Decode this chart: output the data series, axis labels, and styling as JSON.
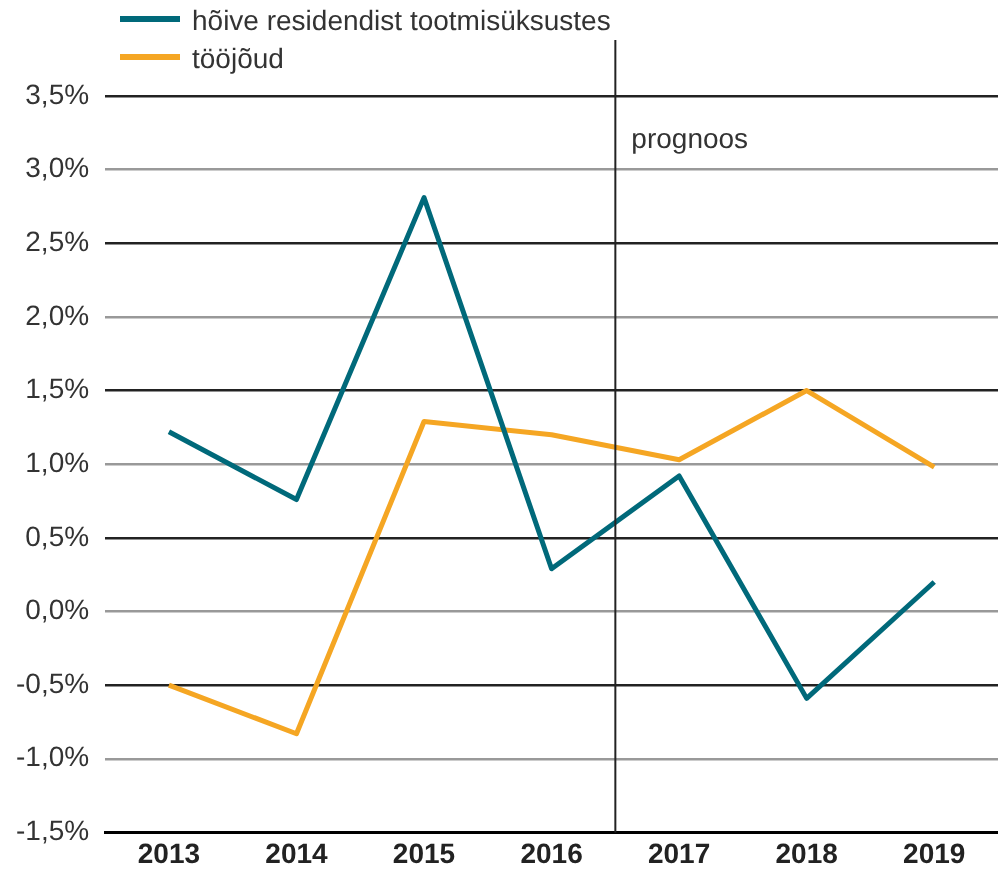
{
  "chart_data": {
    "type": "line",
    "x": [
      2013,
      2014,
      2015,
      2016,
      2017,
      2018,
      2019
    ],
    "xlim": [
      2012.5,
      2019.5
    ],
    "xticks": [
      2013,
      2014,
      2015,
      2016,
      2017,
      2018,
      2019
    ],
    "ylim": [
      -1.5,
      3.5
    ],
    "yticks": [
      {
        "value": -1.5,
        "label": "-1,5%"
      },
      {
        "value": -1,
        "label": "-1,0%"
      },
      {
        "value": -0.5,
        "label": "-0,5%"
      },
      {
        "value": 0,
        "label": "0,0%"
      },
      {
        "value": 0.5,
        "label": "0,5%"
      },
      {
        "value": 1,
        "label": "1,0%"
      },
      {
        "value": 1.5,
        "label": "1,5%"
      },
      {
        "value": 2,
        "label": "2,0%"
      },
      {
        "value": 2.5,
        "label": "2,5%"
      },
      {
        "value": 3,
        "label": "3,0%"
      },
      {
        "value": 3.5,
        "label": "3,5%"
      }
    ],
    "series": [
      {
        "name": "hõive residendist tootmisüksustes",
        "color": "#00697a",
        "values": [
          1.22,
          0.76,
          2.81,
          0.29,
          0.92,
          -0.59,
          0.2
        ]
      },
      {
        "name": "tööjõud",
        "color": "#f5a623",
        "values": [
          -0.5,
          -0.83,
          1.29,
          1.2,
          1.03,
          1.5,
          0.98
        ]
      }
    ],
    "ref_lines": [
      {
        "axis": "x",
        "value": 2016.5,
        "label": "prognoos",
        "color": "#222222"
      }
    ],
    "grid": "y",
    "legend": "top left",
    "marker": "none",
    "line_style": "solid"
  }
}
